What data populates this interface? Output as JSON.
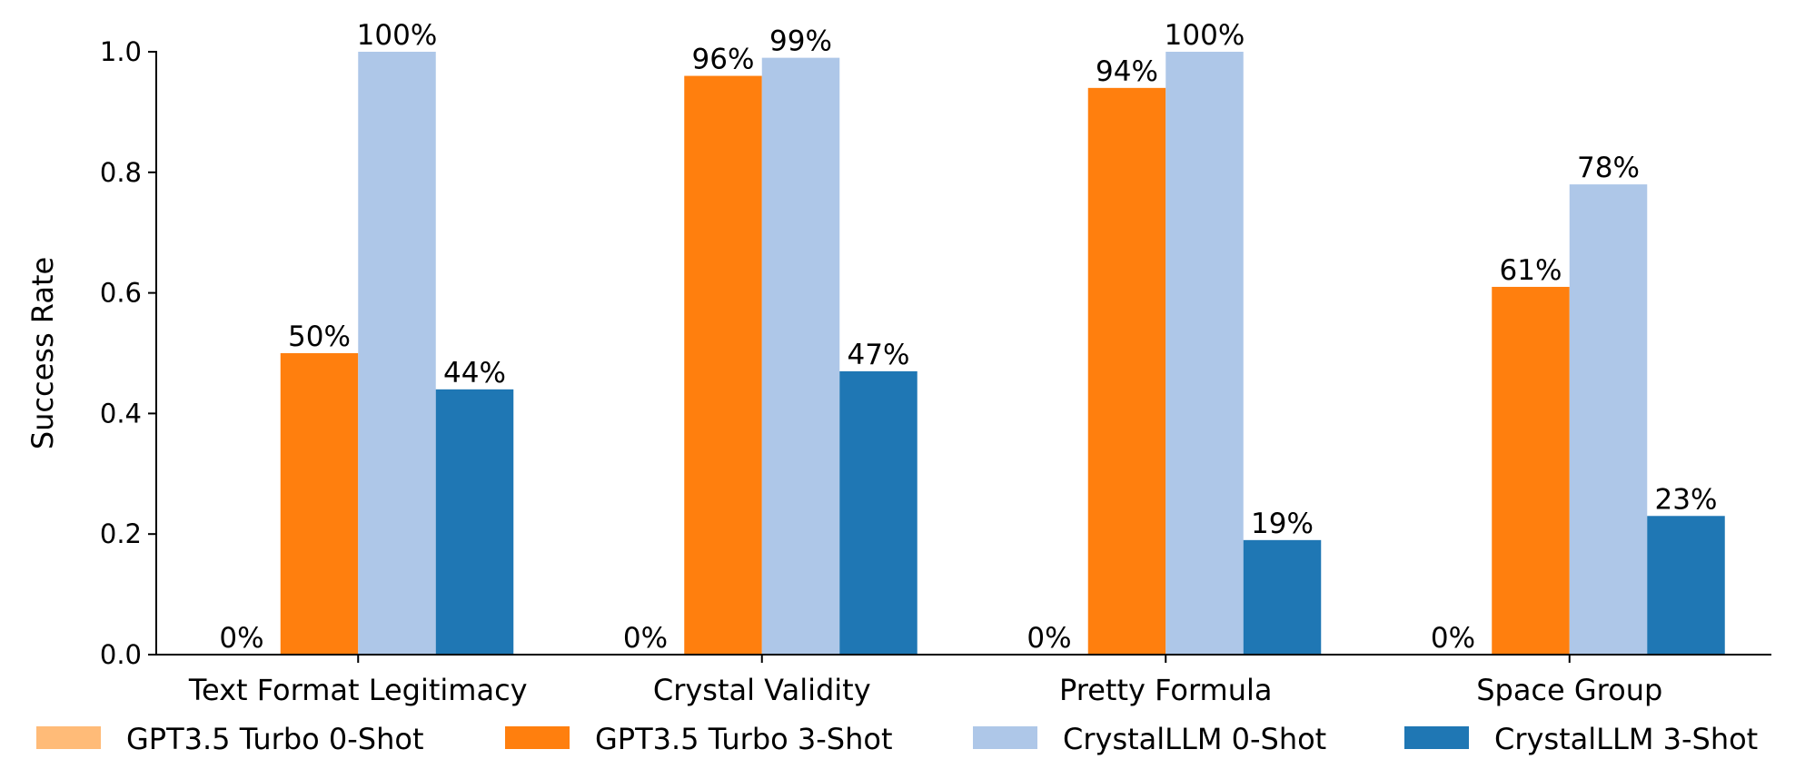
{
  "chart_data": {
    "type": "bar",
    "title": "",
    "xlabel": "",
    "ylabel": "Success Rate",
    "ylim": [
      0,
      1.0
    ],
    "yticks": [
      "0.0",
      "0.2",
      "0.4",
      "0.6",
      "0.8",
      "1.0"
    ],
    "grid": false,
    "legend_position": "bottom",
    "categories": [
      "Text Format Legitimacy",
      "Crystal Validity",
      "Pretty Formula",
      "Space Group"
    ],
    "series": [
      {
        "name": "GPT3.5 Turbo 0-Shot",
        "color": "#ffbb78",
        "values": [
          0.0,
          0.0,
          0.0,
          0.0
        ],
        "labels": [
          "0%",
          "0%",
          "0%",
          "0%"
        ]
      },
      {
        "name": "GPT3.5 Turbo 3-Shot",
        "color": "#ff7f0e",
        "values": [
          0.5,
          0.96,
          0.94,
          0.61
        ],
        "labels": [
          "50%",
          "96%",
          "94%",
          "61%"
        ]
      },
      {
        "name": "CrystalLLM 0-Shot",
        "color": "#aec7e8",
        "values": [
          1.0,
          0.99,
          1.0,
          0.78
        ],
        "labels": [
          "100%",
          "99%",
          "100%",
          "78%"
        ]
      },
      {
        "name": "CrystalLLM 3-Shot",
        "color": "#1f77b4",
        "values": [
          0.44,
          0.47,
          0.19,
          0.23
        ],
        "labels": [
          "44%",
          "47%",
          "19%",
          "23%"
        ]
      }
    ]
  }
}
